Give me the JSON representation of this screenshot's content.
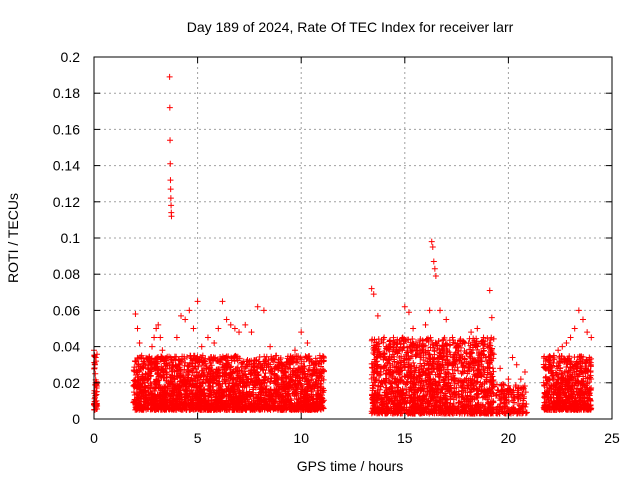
{
  "chart_data": {
    "type": "scatter",
    "title": "Day 189 of 2024, Rate Of TEC Index for receiver larr",
    "xlabel": "GPS time / hours",
    "ylabel": "ROTI / TECUs",
    "xlim": [
      0,
      25
    ],
    "ylim": [
      0,
      0.2
    ],
    "x_ticks": [
      0,
      5,
      10,
      15,
      20,
      25
    ],
    "x_tick_labels": [
      "0",
      "5",
      "10",
      "15",
      "20",
      "25"
    ],
    "y_ticks": [
      0,
      0.02,
      0.04,
      0.06,
      0.08,
      0.1,
      0.12,
      0.14,
      0.16,
      0.18,
      0.2
    ],
    "y_tick_labels": [
      "0",
      "0.02",
      "0.04",
      "0.06",
      "0.08",
      "0.1",
      "0.12",
      "0.14",
      "0.16",
      "0.18",
      "0.2"
    ],
    "grid": true,
    "marker": "plus",
    "color": "#ff0000",
    "series": [
      {
        "x": [
          0.0,
          0.02,
          0.04,
          0.06,
          0.08,
          0.1,
          0.12,
          0.0,
          0.05,
          0.1,
          2.0,
          2.1,
          2.2,
          2.3,
          2.4,
          2.5,
          2.6,
          2.7,
          2.8,
          2.9,
          3.0,
          3.1,
          3.2,
          3.3,
          3.4,
          3.5,
          3.65,
          3.66,
          3.67,
          3.68,
          3.69,
          3.7,
          3.71,
          3.72,
          3.73,
          3.74,
          4.0,
          4.2,
          4.4,
          4.6,
          4.8,
          5.0,
          5.2,
          5.5,
          5.8,
          6.0,
          6.2,
          6.4,
          6.6,
          6.8,
          7.0,
          7.3,
          7.6,
          7.9,
          8.2,
          8.5,
          8.8,
          9.1,
          9.4,
          9.7,
          10.0,
          10.3,
          10.6,
          10.9,
          13.4,
          13.5,
          13.7,
          14.0,
          14.3,
          14.6,
          14.9,
          15.0,
          15.2,
          15.4,
          15.7,
          16.0,
          16.2,
          16.3,
          16.35,
          16.4,
          16.45,
          16.5,
          16.7,
          17.0,
          17.3,
          17.6,
          17.9,
          18.2,
          18.5,
          18.8,
          19.0,
          19.1,
          19.2,
          19.6,
          20.0,
          20.2,
          20.4,
          20.6,
          20.8,
          21.8,
          22.0,
          22.2,
          22.4,
          22.6,
          22.8,
          23.0,
          23.2,
          23.4,
          23.6,
          23.8,
          24.0
        ],
        "y": [
          0.038,
          0.035,
          0.03,
          0.025,
          0.02,
          0.015,
          0.01,
          0.008,
          0.012,
          0.032,
          0.058,
          0.05,
          0.042,
          0.035,
          0.03,
          0.025,
          0.028,
          0.032,
          0.04,
          0.045,
          0.05,
          0.052,
          0.045,
          0.038,
          0.032,
          0.03,
          0.189,
          0.172,
          0.154,
          0.141,
          0.132,
          0.127,
          0.122,
          0.118,
          0.114,
          0.112,
          0.045,
          0.057,
          0.055,
          0.06,
          0.05,
          0.065,
          0.04,
          0.045,
          0.042,
          0.05,
          0.065,
          0.055,
          0.052,
          0.05,
          0.048,
          0.052,
          0.048,
          0.062,
          0.06,
          0.04,
          0.035,
          0.03,
          0.032,
          0.038,
          0.048,
          0.042,
          0.03,
          0.035,
          0.072,
          0.069,
          0.057,
          0.045,
          0.04,
          0.038,
          0.045,
          0.062,
          0.059,
          0.05,
          0.04,
          0.052,
          0.06,
          0.098,
          0.095,
          0.087,
          0.083,
          0.079,
          0.06,
          0.055,
          0.045,
          0.04,
          0.042,
          0.048,
          0.05,
          0.045,
          0.04,
          0.071,
          0.056,
          0.028,
          0.022,
          0.034,
          0.03,
          0.022,
          0.026,
          0.03,
          0.032,
          0.035,
          0.038,
          0.04,
          0.042,
          0.045,
          0.05,
          0.06,
          0.055,
          0.048,
          0.045
        ]
      }
    ],
    "dense_segments": [
      {
        "x": [
          0.0,
          0.15
        ],
        "y": [
          0.005,
          0.04
        ],
        "n": 40
      },
      {
        "x": [
          1.9,
          11.1
        ],
        "y": [
          0.005,
          0.035
        ],
        "n": 2600
      },
      {
        "x": [
          13.4,
          19.3
        ],
        "y": [
          0.003,
          0.045
        ],
        "n": 1700
      },
      {
        "x": [
          19.4,
          20.9
        ],
        "y": [
          0.003,
          0.02
        ],
        "n": 160
      },
      {
        "x": [
          21.7,
          24.0
        ],
        "y": [
          0.005,
          0.035
        ],
        "n": 650
      }
    ]
  }
}
